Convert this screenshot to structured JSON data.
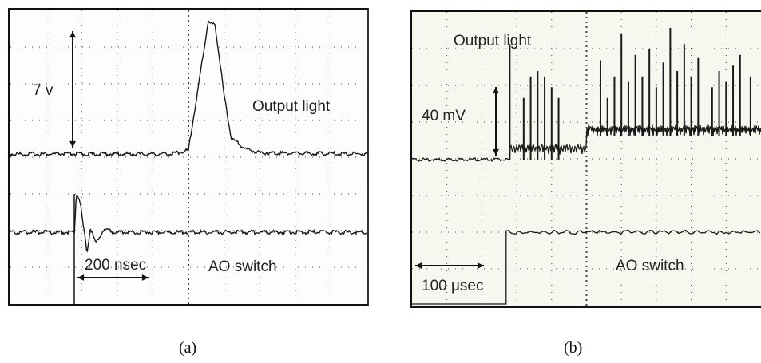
{
  "chart_data": [
    {
      "type": "line",
      "panel": "(a)",
      "labels": {
        "trace_top": "Output light",
        "trace_bottom": "AO switch",
        "vertical_scale": "7 v",
        "horizontal_scale": "200 nsec"
      },
      "series": [
        {
          "name": "Output light",
          "points": [
            [
              0,
              0
            ],
            [
              0.45,
              0
            ],
            [
              0.5,
              0.03
            ],
            [
              0.53,
              0.55
            ],
            [
              0.555,
              1.0
            ],
            [
              0.575,
              0.98
            ],
            [
              0.6,
              0.45
            ],
            [
              0.62,
              0.12
            ],
            [
              0.66,
              0.04
            ],
            [
              0.7,
              0.01
            ],
            [
              1,
              0
            ]
          ]
        },
        {
          "name": "AO switch",
          "points": [
            [
              0,
              0
            ],
            [
              0.18,
              0
            ],
            [
              0.185,
              1.0
            ],
            [
              0.195,
              0.85
            ],
            [
              0.205,
              0.15
            ],
            [
              0.215,
              -0.5
            ],
            [
              0.225,
              0.1
            ],
            [
              0.24,
              -0.3
            ],
            [
              0.26,
              0.05
            ],
            [
              0.3,
              0
            ],
            [
              1,
              0
            ]
          ]
        }
      ],
      "grid": true
    },
    {
      "type": "line",
      "panel": "(b)",
      "labels": {
        "trace_top": "Output light",
        "trace_bottom": "AO switch",
        "vertical_scale": "40 mV",
        "horizontal_scale": "100 μsec"
      },
      "series": [
        {
          "name": "Output light",
          "spikes": [
            [
              0.28,
              0.85
            ],
            [
              0.32,
              0.35
            ],
            [
              0.34,
              0.55
            ],
            [
              0.36,
              0.6
            ],
            [
              0.38,
              0.55
            ],
            [
              0.4,
              0.45
            ],
            [
              0.42,
              0.35
            ],
            [
              0.54,
              0.7
            ],
            [
              0.56,
              0.35
            ],
            [
              0.58,
              0.55
            ],
            [
              0.6,
              0.95
            ],
            [
              0.62,
              0.5
            ],
            [
              0.64,
              0.75
            ],
            [
              0.66,
              0.55
            ],
            [
              0.68,
              0.8
            ],
            [
              0.7,
              0.45
            ],
            [
              0.72,
              0.68
            ],
            [
              0.74,
              1.0
            ],
            [
              0.76,
              0.6
            ],
            [
              0.78,
              0.85
            ],
            [
              0.8,
              0.55
            ],
            [
              0.82,
              0.72
            ],
            [
              0.86,
              0.45
            ],
            [
              0.88,
              0.6
            ],
            [
              0.9,
              0.5
            ],
            [
              0.92,
              0.65
            ],
            [
              0.94,
              0.75
            ],
            [
              0.97,
              0.55
            ]
          ]
        },
        {
          "name": "AO switch",
          "points": [
            [
              0,
              0
            ],
            [
              0.265,
              0
            ],
            [
              0.27,
              1.0
            ],
            [
              1,
              1.0
            ]
          ]
        }
      ],
      "grid": true
    }
  ],
  "captions": {
    "a": "(a)",
    "b": "(b)"
  },
  "colors": {
    "trace": "#1a1a1a",
    "grid": "#444444",
    "background_a": "#fdfdfd",
    "background_b": "#f4f8ee"
  }
}
